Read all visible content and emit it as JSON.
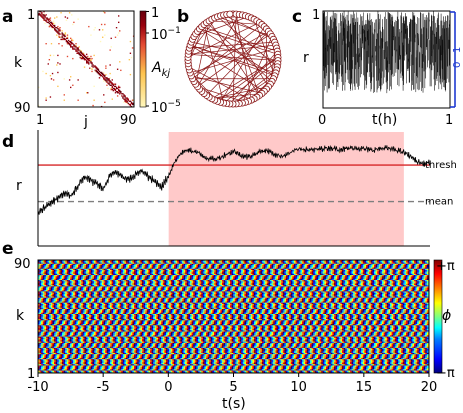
{
  "panels": {
    "a": {
      "label": "a",
      "ylabel": "k",
      "xlabel": "j",
      "xtick_left": "1",
      "xtick_right": "90",
      "ytick_top": "1",
      "ytick_bottom": "90",
      "colorbar_label": "A",
      "colorbar_label_sub": "kj",
      "colorbar_ticks": [
        {
          "base": "1",
          "exp": ""
        },
        {
          "base": "10",
          "exp": "−1"
        },
        {
          "base": "10",
          "exp": "−5"
        }
      ],
      "colormap": [
        "#fff7bc",
        "#fec44f",
        "#e34a33",
        "#99000d",
        "#67000d"
      ]
    },
    "b": {
      "label": "b",
      "node_count": 90,
      "node_color": "#8b1a1a"
    },
    "c": {
      "label": "c",
      "ylabel": "r",
      "xlabel": "t(h)",
      "xticks": [
        "0",
        "1"
      ],
      "yticks": [
        "0",
        "1"
      ],
      "side_ticks": [
        "0",
        "1"
      ],
      "side_color": "#1f3bd1"
    },
    "d": {
      "label": "d",
      "ylabel": "r",
      "thresh_label": "thresh",
      "mean_label": "mean",
      "thresh_color": "#d62728",
      "mean_color": "#7f7f7f",
      "highlight_color": "#ffc9c9",
      "highlight_range": [
        0,
        18
      ]
    },
    "e": {
      "label": "e",
      "ylabel": "k",
      "xlabel": "t(s)",
      "ytick_top": "90",
      "ytick_bottom": "1",
      "xticks": [
        "-10",
        "-5",
        "0",
        "5",
        "10",
        "15",
        "20"
      ],
      "colorbar_label": "ϕ",
      "colorbar_top": "+π",
      "colorbar_bottom": "−π",
      "phase_colormap": [
        "#00007f",
        "#0000ff",
        "#007fff",
        "#00ffff",
        "#7fff7f",
        "#ffff00",
        "#ff7f00",
        "#ff0000",
        "#7f0000"
      ]
    }
  },
  "chart_data": [
    {
      "type": "heatmap",
      "panel": "a",
      "title": "",
      "xlabel": "j",
      "ylabel": "k",
      "x_range": [
        1,
        90
      ],
      "y_range": [
        1,
        90
      ],
      "color_scale": "log",
      "color_range": [
        1e-05,
        1
      ],
      "structure": "dense near-diagonal band with sparse off-diagonal entries"
    },
    {
      "type": "line",
      "panel": "c",
      "title": "",
      "xlabel": "t(h)",
      "ylabel": "r",
      "xlim": [
        0,
        1
      ],
      "ylim": [
        0,
        1
      ],
      "description": "dense noisy order-parameter trace fluctuating between ~0.1 and ~1"
    },
    {
      "type": "line",
      "panel": "d",
      "title": "",
      "xlabel": "t(s)",
      "ylabel": "r",
      "xlim": [
        -10,
        20
      ],
      "ylim": [
        0,
        1
      ],
      "series": [
        {
          "name": "r(t)",
          "x": [
            -10,
            -9.5,
            -9,
            -8.5,
            -8,
            -7.5,
            -7,
            -6.5,
            -6,
            -5.5,
            -5,
            -4.5,
            -4,
            -3.5,
            -3,
            -2.5,
            -2,
            -1.5,
            -1,
            -0.5,
            0,
            0.5,
            1,
            1.5,
            2,
            2.5,
            3,
            3.5,
            4,
            4.5,
            5,
            5.5,
            6,
            6.5,
            7,
            7.5,
            8,
            8.5,
            9,
            9.5,
            10,
            10.5,
            11,
            11.5,
            12,
            12.5,
            13,
            13.5,
            14,
            14.5,
            15,
            15.5,
            16,
            16.5,
            17,
            17.5,
            18,
            18.5,
            19,
            19.5,
            20
          ],
          "y": [
            0.28,
            0.34,
            0.38,
            0.42,
            0.46,
            0.44,
            0.52,
            0.6,
            0.58,
            0.55,
            0.5,
            0.62,
            0.65,
            0.6,
            0.58,
            0.63,
            0.66,
            0.6,
            0.56,
            0.52,
            0.62,
            0.75,
            0.82,
            0.84,
            0.83,
            0.8,
            0.77,
            0.76,
            0.78,
            0.81,
            0.83,
            0.8,
            0.78,
            0.8,
            0.83,
            0.84,
            0.81,
            0.79,
            0.8,
            0.83,
            0.85,
            0.85,
            0.84,
            0.85,
            0.86,
            0.86,
            0.85,
            0.85,
            0.86,
            0.86,
            0.85,
            0.84,
            0.85,
            0.86,
            0.85,
            0.84,
            0.82,
            0.79,
            0.74,
            0.72,
            0.73
          ]
        }
      ],
      "hlines": [
        {
          "name": "thresh",
          "y": 0.71
        },
        {
          "name": "mean",
          "y": 0.39
        }
      ],
      "highlight_x": [
        0,
        18
      ]
    },
    {
      "type": "heatmap",
      "panel": "e",
      "title": "",
      "xlabel": "t(s)",
      "ylabel": "k",
      "xlim": [
        -10,
        20
      ],
      "y_range": [
        1,
        90
      ],
      "color_label": "ϕ",
      "color_range": [
        "−π",
        "+π"
      ],
      "description": "phase ϕ of each node k over time, forming diagonal travelling stripes"
    }
  ]
}
